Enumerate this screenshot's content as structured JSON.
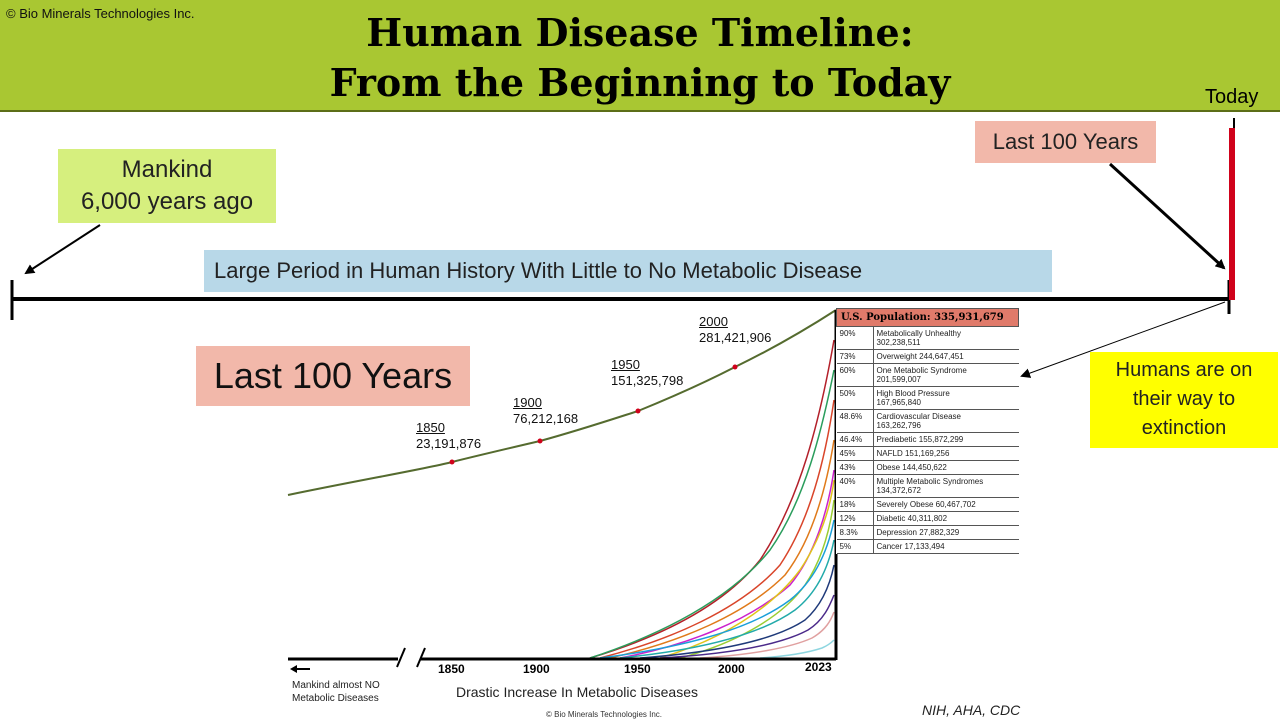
{
  "header": {
    "copyright": "© Bio Minerals Technologies Inc.",
    "title_line1": "Human Disease Timeline:",
    "title_line2": "From the Beginning to Today",
    "today_label": "Today"
  },
  "callouts": {
    "mankind_line1": "Mankind",
    "mankind_line2": "6,000 years ago",
    "last100_top": "Last 100 Years",
    "period": "Large Period in Human History With Little to No Metabolic Disease",
    "last100_big": "Last 100 Years",
    "extinction_line1": "Humans are on",
    "extinction_line2": "their way to",
    "extinction_line3": "extinction"
  },
  "population_points": [
    {
      "year": "1850",
      "value": "23,191,876"
    },
    {
      "year": "1900",
      "value": "76,212,168"
    },
    {
      "year": "1950",
      "value": "151,325,798"
    },
    {
      "year": "2000",
      "value": "281,421,906"
    }
  ],
  "axis_years": [
    "1850",
    "1900",
    "1950",
    "2000",
    "2023"
  ],
  "us_table": {
    "header": "U.S. Population: 335,931,679",
    "rows": [
      {
        "pct": "90%",
        "label": "Metabolically Unhealthy",
        "value": "302,238,511"
      },
      {
        "pct": "73%",
        "label": "Overweight 244,647,451",
        "value": ""
      },
      {
        "pct": "60%",
        "label": "One Metabolic Syndrome",
        "value": "201,599,007"
      },
      {
        "pct": "50%",
        "label": "High Blood Pressure",
        "value": "167,965,840"
      },
      {
        "pct": "48.6%",
        "label": "Cardiovascular Disease",
        "value": "163,262,796"
      },
      {
        "pct": "46.4%",
        "label": "Prediabetic 155,872,299",
        "value": ""
      },
      {
        "pct": "45%",
        "label": "NAFLD 151,169,256",
        "value": ""
      },
      {
        "pct": "43%",
        "label": "Obese 144,450,622",
        "value": ""
      },
      {
        "pct": "40%",
        "label": "Multiple Metabolic Syndromes",
        "value": "134,372,672"
      },
      {
        "pct": "18%",
        "label": "Severely Obese 60,467,702",
        "value": ""
      },
      {
        "pct": "12%",
        "label": "Diabetic 40,311,802",
        "value": ""
      },
      {
        "pct": "8.3%",
        "label": "Depression 27,882,329",
        "value": ""
      },
      {
        "pct": "5%",
        "label": "Cancer 17,133,494",
        "value": ""
      }
    ]
  },
  "footer": {
    "left_note_line1": "Mankind almost NO",
    "left_note_line2": "Metabolic Diseases",
    "drastic": "Drastic Increase In Metabolic Diseases",
    "copyright": "© Bio Minerals Technologies Inc.",
    "sources": "NIH, AHA, CDC"
  },
  "colors": {
    "header_bg": "#a9c732",
    "population_curve": "#556b2f",
    "today_marker": "#d0021b",
    "disease_curves": [
      "#b3202a",
      "#2a9d5c",
      "#d9452a",
      "#e07a1a",
      "#8a1f5a",
      "#e0c419",
      "#9acd32",
      "#1a9fd9",
      "#cc22cc",
      "#4b2a8a",
      "#22aaaa",
      "#1f3a7a",
      "#e0a0a0"
    ]
  },
  "icons": {
    "left_arrow": "arrow-left-icon",
    "axis_break": "axis-break-icon"
  }
}
